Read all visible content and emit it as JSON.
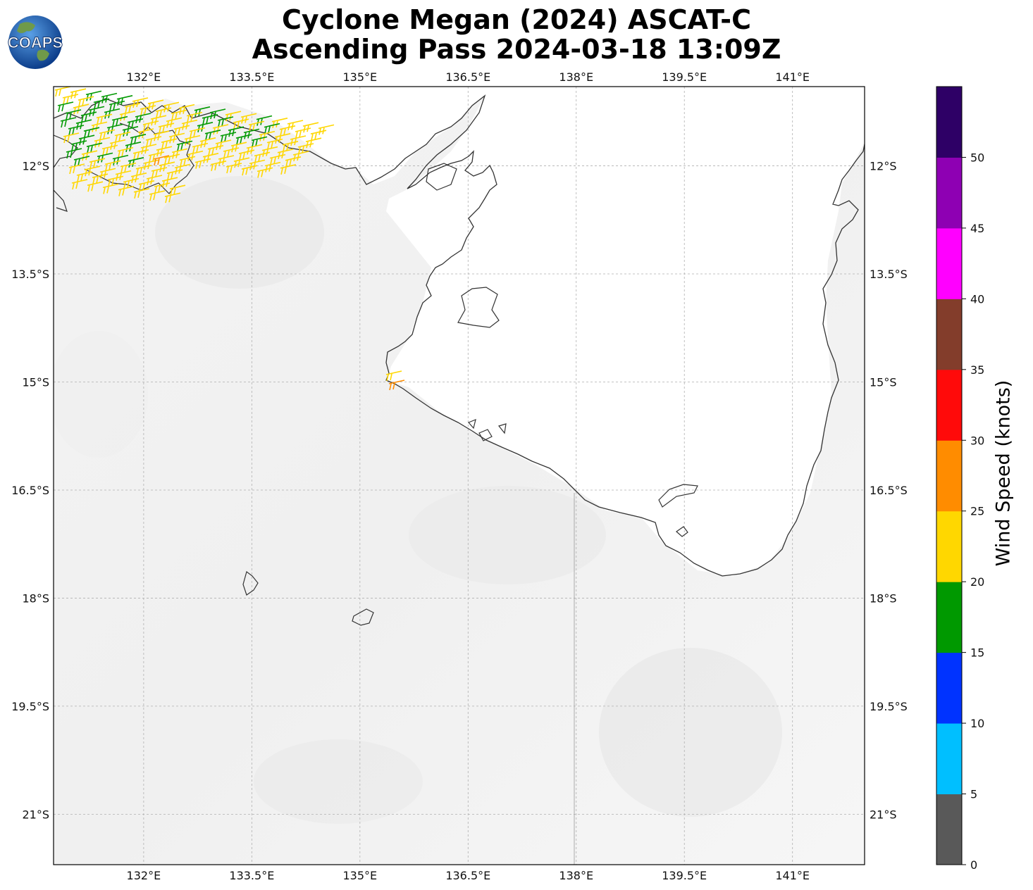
{
  "title_line1": "Cyclone Megan (2024) ASCAT-C",
  "title_line2": "Ascending Pass 2024-03-18 13:09Z",
  "logo": {
    "text": "COAPS",
    "icon": "globe-logo-icon",
    "color_ocean": "#1a5fb4",
    "color_land": "#6f9a4a"
  },
  "map": {
    "lon_ticks": [
      "132°E",
      "133.5°E",
      "135°E",
      "136.5°E",
      "138°E",
      "139.5°E",
      "141°E"
    ],
    "lat_ticks": [
      "12°S",
      "13.5°S",
      "15°S",
      "16.5°S",
      "18°S",
      "19.5°S",
      "21°S"
    ],
    "lon_range": [
      130.75,
      142.0
    ],
    "lat_range": [
      -10.9,
      -21.7
    ],
    "gridlines": true
  },
  "colorbar": {
    "label": "Wind Speed (knots)",
    "ticks": [
      "0",
      "5",
      "10",
      "15",
      "20",
      "25",
      "30",
      "35",
      "40",
      "45",
      "50"
    ],
    "colors": [
      "#595959",
      "#00bfff",
      "#0033ff",
      "#009900",
      "#ffd700",
      "#ff8c00",
      "#ff0a0a",
      "#833d2b",
      "#ff00ff",
      "#8e00b3",
      "#2e0066"
    ]
  },
  "wind_barb_colors": {
    "15-20": "#009900",
    "20-25": "#ffd700",
    "25-30": "#ff8c00"
  }
}
